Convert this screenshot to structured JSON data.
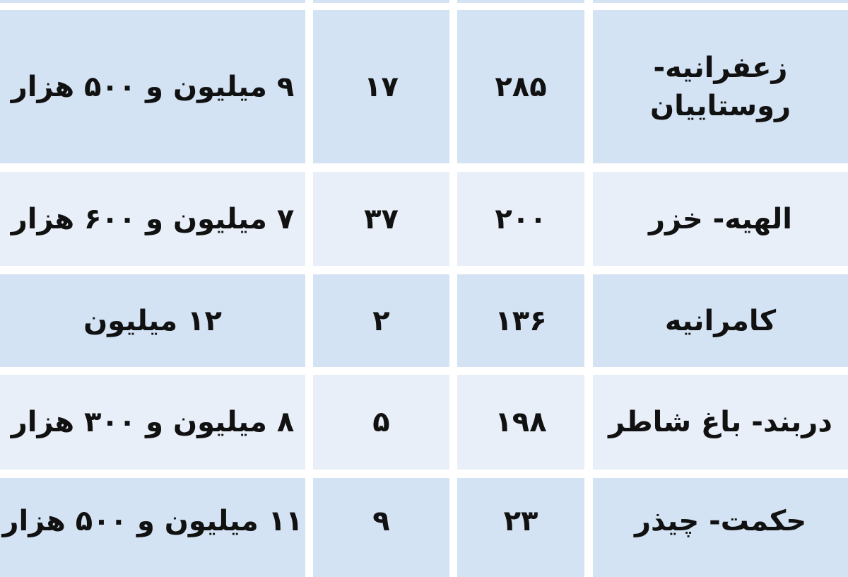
{
  "colors": {
    "row_dark": "#d3e3f3",
    "row_light": "#e8eff8",
    "gap": "#ffffff"
  },
  "rows": [
    {
      "area": "زعفرانیه- روستاییان",
      "c3": "۲۸۵",
      "c2": "۱۷",
      "price": "۹ میلیون و ۵۰۰ هزار"
    },
    {
      "area": "الهیه- خزر",
      "c3": "۲۰۰",
      "c2": "۳۷",
      "price": "۷ میلیون و ۶۰۰ هزار"
    },
    {
      "area": "کامرانیه",
      "c3": "۱۳۶",
      "c2": "۲",
      "price": "۱۲ میلیون"
    },
    {
      "area": "دربند- باغ شاطر",
      "c3": "۱۹۸",
      "c2": "۵",
      "price": "۸ میلیون و ۳۰۰ هزار"
    },
    {
      "area": "حکمت- چیذر",
      "c3": "۲۳",
      "c2": "۹",
      "price": "۱۱ میلیون و ۵۰۰ هزار"
    }
  ]
}
